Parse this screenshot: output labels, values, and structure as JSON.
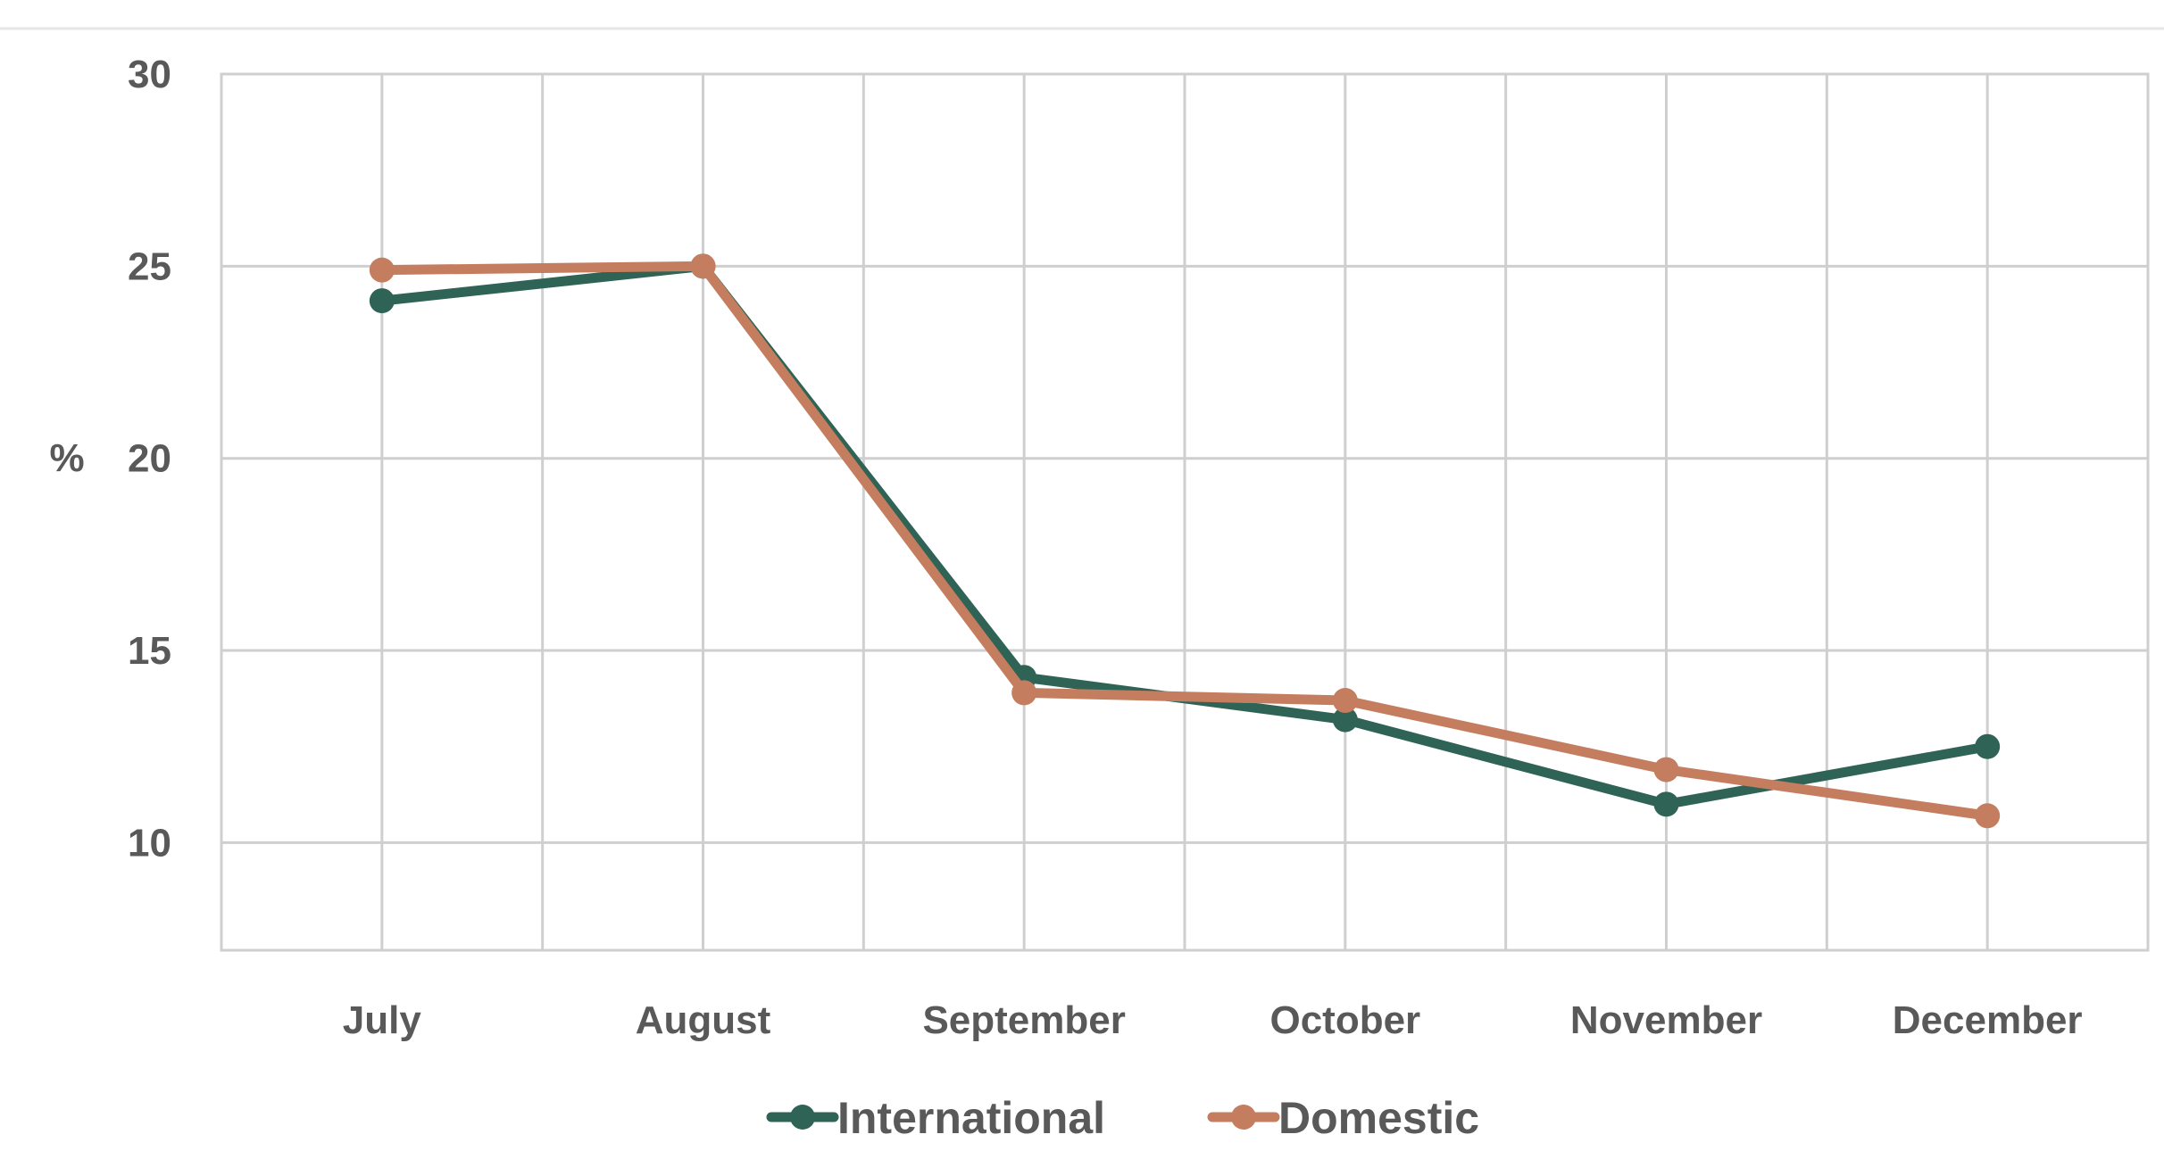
{
  "chart_data": {
    "type": "line",
    "categories": [
      "July",
      "August",
      "September",
      "October",
      "November",
      "December"
    ],
    "series": [
      {
        "name": "International",
        "color": "#2e6356",
        "values": [
          24.1,
          25.0,
          14.3,
          13.2,
          11.0,
          12.5
        ]
      },
      {
        "name": "Domestic",
        "color": "#c47d5e",
        "values": [
          24.9,
          25.0,
          13.9,
          13.7,
          11.9,
          10.7
        ]
      }
    ],
    "ylabel": "%",
    "ylim": [
      7.2,
      30
    ],
    "yticks": [
      "10",
      "15",
      "20",
      "25",
      "30"
    ],
    "grid": true,
    "legend_position": "bottom"
  }
}
